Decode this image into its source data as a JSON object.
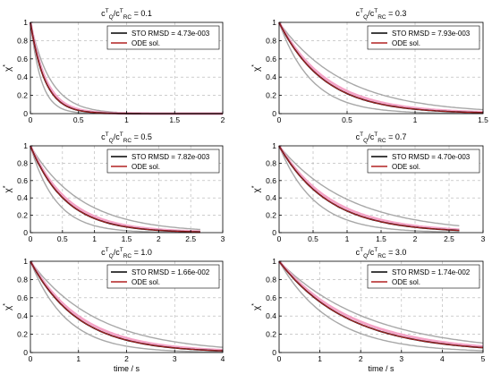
{
  "chart_data": [
    {
      "type": "line",
      "title_main": "c",
      "title_sup1": "T",
      "title_sub1": "Q",
      "title_mid": "/c",
      "title_sup2": "T",
      "title_sub2": "RC",
      "title_value": " = 0.1",
      "ylabel": "χ",
      "ylabel_sup": "*",
      "xlabel": "",
      "xlim": [
        0,
        2
      ],
      "ylim": [
        0,
        1
      ],
      "xticks": [
        "0",
        "0.5",
        "1",
        "1.5",
        "2"
      ],
      "yticks": [
        "0",
        "0.2",
        "0.4",
        "0.6",
        "0.8",
        "1"
      ],
      "legend": [
        "STO RMSD = 4.73e-003",
        "ODE sol."
      ],
      "tau": 0.15,
      "x_end": 2,
      "band_lo": 0.75,
      "band_hi": 1.4,
      "series_colors": {
        "sto": "#000000",
        "ode": "#b22222",
        "band": "#f4a3c6",
        "spread": "#a8a8a8"
      },
      "grid": true
    },
    {
      "type": "line",
      "title_main": "c",
      "title_sup1": "T",
      "title_sub1": "Q",
      "title_mid": "/c",
      "title_sup2": "T",
      "title_sub2": "RC",
      "title_value": " = 0.3",
      "ylabel": "χ",
      "ylabel_sup": "*",
      "xlabel": "",
      "xlim": [
        0,
        1.5
      ],
      "ylim": [
        0,
        1
      ],
      "xticks": [
        "0",
        "0.5",
        "1",
        "1.5"
      ],
      "yticks": [
        "0",
        "0.2",
        "0.4",
        "0.6",
        "0.8",
        "1"
      ],
      "legend": [
        "STO RMSD = 7.93e-003",
        "ODE sol."
      ],
      "tau": 0.33,
      "x_end": 1.5,
      "band_lo": 0.72,
      "band_hi": 1.45,
      "series_colors": {
        "sto": "#000000",
        "ode": "#b22222",
        "band": "#f4a3c6",
        "spread": "#a8a8a8"
      },
      "grid": true
    },
    {
      "type": "line",
      "title_main": "c",
      "title_sup1": "T",
      "title_sub1": "Q",
      "title_mid": "/c",
      "title_sup2": "T",
      "title_sub2": "RC",
      "title_value": " = 0.5",
      "ylabel": "χ",
      "ylabel_sup": "*",
      "xlabel": "",
      "xlim": [
        0,
        3
      ],
      "ylim": [
        0,
        1
      ],
      "xticks": [
        "0",
        "0.5",
        "1",
        "1.5",
        "2",
        "2.5",
        "3"
      ],
      "yticks": [
        "0",
        "0.2",
        "0.4",
        "0.6",
        "0.8",
        "1"
      ],
      "legend": [
        "STO RMSD = 7.82e-003",
        "ODE sol."
      ],
      "tau": 0.55,
      "x_end": 2.65,
      "band_lo": 0.72,
      "band_hi": 1.45,
      "series_colors": {
        "sto": "#000000",
        "ode": "#b22222",
        "band": "#f4a3c6",
        "spread": "#a8a8a8"
      },
      "grid": true
    },
    {
      "type": "line",
      "title_main": "c",
      "title_sup1": "T",
      "title_sub1": "Q",
      "title_mid": "/c",
      "title_sup2": "T",
      "title_sub2": "RC",
      "title_value": " = 0.7",
      "ylabel": "χ",
      "ylabel_sup": "*",
      "xlabel": "",
      "xlim": [
        0,
        3
      ],
      "ylim": [
        0,
        1
      ],
      "xticks": [
        "0",
        "0.5",
        "1",
        "1.5",
        "2",
        "2.5",
        "3"
      ],
      "yticks": [
        "0",
        "0.2",
        "0.4",
        "0.6",
        "0.8",
        "1"
      ],
      "legend": [
        "STO RMSD = 4.70e-003",
        "ODE sol."
      ],
      "tau": 0.72,
      "x_end": 2.65,
      "band_lo": 0.72,
      "band_hi": 1.45,
      "series_colors": {
        "sto": "#000000",
        "ode": "#b22222",
        "band": "#f4a3c6",
        "spread": "#a8a8a8"
      },
      "grid": true
    },
    {
      "type": "line",
      "title_main": "c",
      "title_sup1": "T",
      "title_sub1": "Q",
      "title_mid": "/c",
      "title_sup2": "T",
      "title_sub2": "RC",
      "title_value": " = 1.0",
      "ylabel": "χ",
      "ylabel_sup": "*",
      "xlabel": "time / s",
      "xlim": [
        0,
        4
      ],
      "ylim": [
        0,
        1
      ],
      "xticks": [
        "0",
        "1",
        "2",
        "3",
        "4"
      ],
      "yticks": [
        "0",
        "0.2",
        "0.4",
        "0.6",
        "0.8",
        "1"
      ],
      "legend": [
        "STO RMSD = 1.66e-002",
        "ODE sol."
      ],
      "tau": 1.0,
      "x_end": 4,
      "band_lo": 0.75,
      "band_hi": 1.4,
      "series_colors": {
        "sto": "#000000",
        "ode": "#b22222",
        "band": "#f4a3c6",
        "spread": "#a8a8a8"
      },
      "grid": true
    },
    {
      "type": "line",
      "title_main": "c",
      "title_sup1": "T",
      "title_sub1": "Q",
      "title_mid": "/c",
      "title_sup2": "T",
      "title_sub2": "RC",
      "title_value": " = 3.0",
      "ylabel": "χ",
      "ylabel_sup": "*",
      "xlabel": "time / s",
      "xlim": [
        0,
        5
      ],
      "ylim": [
        0,
        1
      ],
      "xticks": [
        "0",
        "1",
        "2",
        "3",
        "4",
        "5"
      ],
      "yticks": [
        "0",
        "0.2",
        "0.4",
        "0.6",
        "0.8",
        "1"
      ],
      "legend": [
        "STO RMSD = 1.74e-002",
        "ODE sol."
      ],
      "tau": 1.7,
      "x_end": 5,
      "band_lo": 0.75,
      "band_hi": 1.3,
      "series_colors": {
        "sto": "#000000",
        "ode": "#b22222",
        "band": "#f4a3c6",
        "spread": "#a8a8a8"
      },
      "grid": true
    }
  ]
}
